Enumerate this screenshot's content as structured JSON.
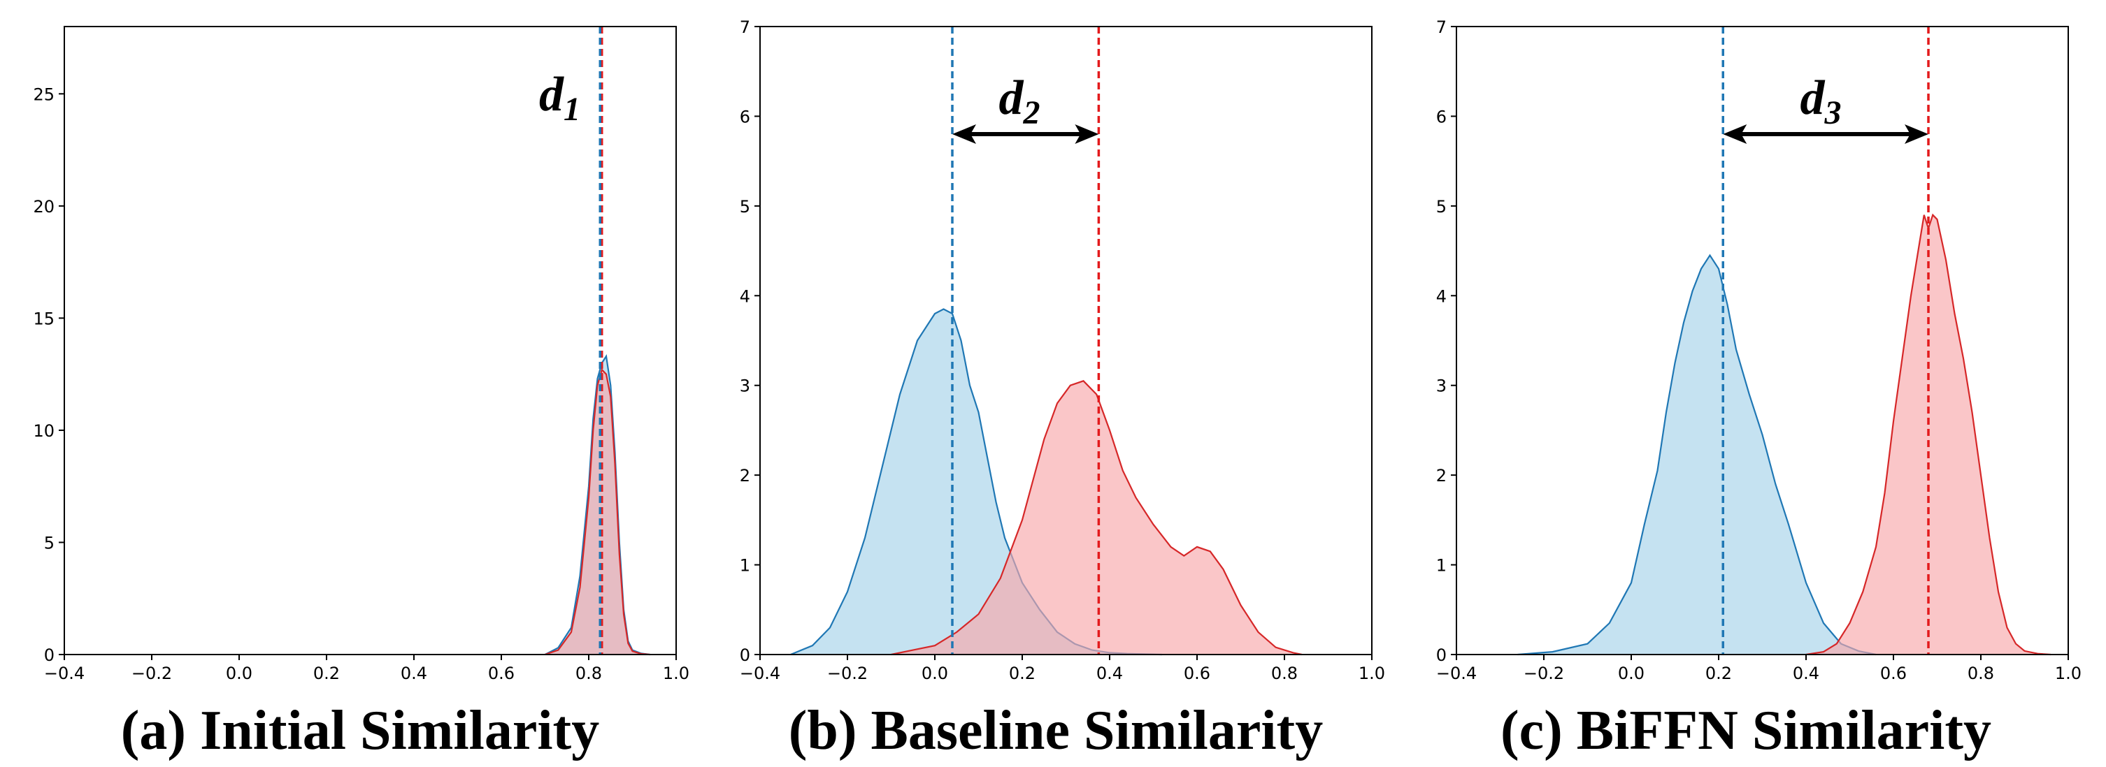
{
  "colors": {
    "blue_line": "#1f77b4",
    "blue_fill": "#a6d3ea",
    "red_line": "#d62728",
    "red_fill": "#f7a8aa",
    "mean_blue": "#1f77b4",
    "mean_red": "#e31a1c",
    "axis": "#000000"
  },
  "chart_data": [
    {
      "type": "area",
      "title": "(a) Initial Similarity",
      "xlim": [
        -0.4,
        1.0
      ],
      "ylim": [
        0,
        28
      ],
      "xticks": [
        "-0.4",
        "-0.2",
        "0.0",
        "0.2",
        "0.4",
        "0.6",
        "0.8",
        "1.0"
      ],
      "yticks": [
        "0",
        "5",
        "10",
        "15",
        "20",
        "25"
      ],
      "distance_label": {
        "main": "d",
        "sub": "1"
      },
      "means": {
        "blue": 0.826,
        "red": 0.83
      },
      "series": [
        {
          "name": "blue",
          "x": [
            0.7,
            0.73,
            0.76,
            0.78,
            0.8,
            0.81,
            0.82,
            0.83,
            0.84,
            0.85,
            0.86,
            0.87,
            0.88,
            0.89,
            0.9,
            0.92,
            0.94
          ],
          "y": [
            0,
            0.3,
            1.2,
            3.5,
            7.5,
            10.5,
            12.3,
            13.0,
            13.3,
            12.0,
            9.0,
            5.0,
            2.0,
            0.6,
            0.2,
            0.05,
            0
          ]
        },
        {
          "name": "red",
          "x": [
            0.7,
            0.73,
            0.76,
            0.78,
            0.8,
            0.81,
            0.82,
            0.83,
            0.84,
            0.85,
            0.86,
            0.87,
            0.88,
            0.89,
            0.9,
            0.92,
            0.94
          ],
          "y": [
            0,
            0.2,
            1.0,
            3.0,
            7.0,
            10.0,
            12.0,
            12.7,
            12.5,
            11.5,
            8.5,
            4.5,
            1.8,
            0.5,
            0.15,
            0.03,
            0
          ]
        }
      ]
    },
    {
      "type": "area",
      "title": "(b) Baseline Similarity",
      "xlim": [
        -0.4,
        1.0
      ],
      "ylim": [
        0,
        7
      ],
      "xticks": [
        "-0.4",
        "-0.2",
        "0.0",
        "0.2",
        "0.4",
        "0.6",
        "0.8",
        "1.0"
      ],
      "yticks": [
        "0",
        "1",
        "2",
        "3",
        "4",
        "5",
        "6",
        "7"
      ],
      "distance_label": {
        "main": "d",
        "sub": "2"
      },
      "means": {
        "blue": 0.04,
        "red": 0.375
      },
      "series": [
        {
          "name": "blue",
          "x": [
            -0.33,
            -0.28,
            -0.24,
            -0.2,
            -0.16,
            -0.12,
            -0.08,
            -0.04,
            0.0,
            0.02,
            0.04,
            0.06,
            0.08,
            0.1,
            0.12,
            0.14,
            0.16,
            0.18,
            0.2,
            0.24,
            0.28,
            0.32,
            0.36,
            0.4,
            0.44,
            0.48,
            0.52
          ],
          "y": [
            0,
            0.1,
            0.3,
            0.7,
            1.3,
            2.1,
            2.9,
            3.5,
            3.8,
            3.85,
            3.8,
            3.5,
            3.0,
            2.7,
            2.2,
            1.7,
            1.3,
            1.05,
            0.8,
            0.5,
            0.25,
            0.12,
            0.05,
            0.02,
            0.01,
            0.005,
            0
          ]
        },
        {
          "name": "red",
          "x": [
            -0.1,
            -0.05,
            0.0,
            0.05,
            0.1,
            0.15,
            0.2,
            0.25,
            0.28,
            0.31,
            0.34,
            0.37,
            0.4,
            0.43,
            0.46,
            0.5,
            0.54,
            0.57,
            0.6,
            0.63,
            0.66,
            0.7,
            0.74,
            0.78,
            0.82,
            0.84
          ],
          "y": [
            0,
            0.05,
            0.1,
            0.25,
            0.45,
            0.85,
            1.5,
            2.4,
            2.8,
            3.0,
            3.05,
            2.9,
            2.5,
            2.05,
            1.75,
            1.45,
            1.2,
            1.1,
            1.2,
            1.15,
            0.95,
            0.55,
            0.25,
            0.08,
            0.02,
            0
          ]
        }
      ]
    },
    {
      "type": "area",
      "title": "(c) BiFFN Similarity",
      "xlim": [
        -0.4,
        1.0
      ],
      "ylim": [
        0,
        7
      ],
      "xticks": [
        "-0.4",
        "-0.2",
        "0.0",
        "0.2",
        "0.4",
        "0.6",
        "0.8",
        "1.0"
      ],
      "yticks": [
        "0",
        "1",
        "2",
        "3",
        "4",
        "5",
        "6",
        "7"
      ],
      "distance_label": {
        "main": "d",
        "sub": "3"
      },
      "means": {
        "blue": 0.21,
        "red": 0.68
      },
      "series": [
        {
          "name": "blue",
          "x": [
            -0.26,
            -0.18,
            -0.1,
            -0.05,
            0.0,
            0.03,
            0.06,
            0.08,
            0.1,
            0.12,
            0.14,
            0.16,
            0.18,
            0.2,
            0.22,
            0.24,
            0.27,
            0.3,
            0.33,
            0.36,
            0.4,
            0.44,
            0.48,
            0.52,
            0.56
          ],
          "y": [
            0,
            0.03,
            0.12,
            0.35,
            0.8,
            1.45,
            2.05,
            2.7,
            3.25,
            3.7,
            4.05,
            4.3,
            4.45,
            4.3,
            3.9,
            3.4,
            2.9,
            2.45,
            1.9,
            1.45,
            0.8,
            0.35,
            0.12,
            0.04,
            0
          ]
        },
        {
          "name": "red",
          "x": [
            0.4,
            0.44,
            0.47,
            0.5,
            0.53,
            0.56,
            0.58,
            0.6,
            0.62,
            0.64,
            0.66,
            0.67,
            0.68,
            0.69,
            0.7,
            0.72,
            0.74,
            0.76,
            0.78,
            0.8,
            0.82,
            0.84,
            0.86,
            0.88,
            0.9,
            0.93,
            0.96
          ],
          "y": [
            0,
            0.03,
            0.12,
            0.35,
            0.7,
            1.2,
            1.8,
            2.6,
            3.3,
            4.0,
            4.6,
            4.9,
            4.75,
            4.9,
            4.85,
            4.4,
            3.8,
            3.3,
            2.7,
            2.0,
            1.3,
            0.7,
            0.3,
            0.12,
            0.04,
            0.01,
            0
          ]
        }
      ]
    }
  ]
}
